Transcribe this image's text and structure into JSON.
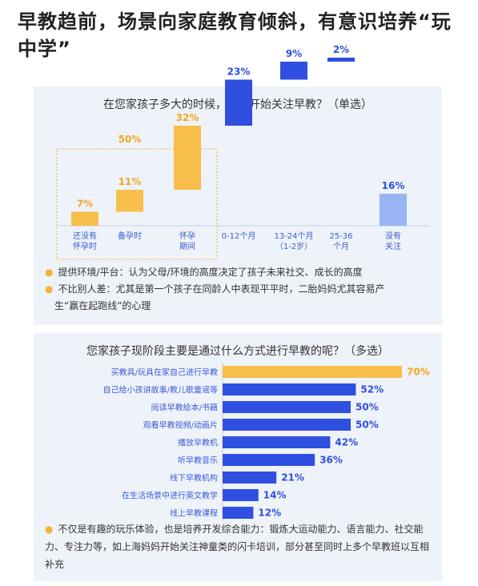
{
  "title": "早教趋前，场景向家庭教育倾斜，有意识培养“玩中学”",
  "colors": {
    "orange": "#f7be4a",
    "blue": "#2f4fe0",
    "orange_text": "#f2a81d",
    "blue_text": "#2f4fe0"
  },
  "panel1": {
    "chart_data": {
      "type": "bar",
      "title": "在您家孩子多大的时候，您就开始关注早教？（单选）",
      "group_label": "50%",
      "categories": [
        "还没有\n怀孕时",
        "备孕时",
        "怀孕\n期间",
        "0-12个月",
        "13-24个月\n（1-2岁）",
        "25-36\n个月",
        "没有\n关注"
      ],
      "values": [
        7,
        11,
        32,
        23,
        9,
        2,
        16
      ],
      "value_labels": [
        "7%",
        "11%",
        "32%",
        "23%",
        "9%",
        "2%",
        "16%"
      ],
      "bar_colors": [
        "orange",
        "orange",
        "orange",
        "blue",
        "blue",
        "blue",
        "lightblue"
      ]
    },
    "bullets": [
      "提供环境/平台：认为父母/环境的高度决定了孩子未来社交、成长的高度",
      "不比别人差：尤其是第一个孩子在同龄人中表现平平时，二胎妈妈尤其容易产",
      "生“赢在起跑线“的心理"
    ]
  },
  "panel2": {
    "chart_data": {
      "type": "bar",
      "orientation": "horizontal",
      "title": "您家孩子现阶段主要是通过什么方式进行早教的呢？（多选）",
      "categories": [
        "买教具/玩具在家自己进行早教",
        "自己给小孩讲故事/教儿歌童谣等",
        "阅读早教绘本/书籍",
        "观看早教视频/动画片",
        "播放早教机",
        "听早教音乐",
        "线下早教机构",
        "在生活场景中进行英文教学",
        "线上早教课程"
      ],
      "values": [
        70,
        52,
        50,
        50,
        42,
        36,
        21,
        14,
        12
      ],
      "value_labels": [
        "70%",
        "52%",
        "50%",
        "50%",
        "42%",
        "36%",
        "21%",
        "14%",
        "12%"
      ]
    },
    "note": "不仅是有趣的玩乐体验，也是培养开发综合能力：锻炼大运动能力、语言能力、社交能力、专注力等，如上海妈妈开始关注神童类的闪卡培训，部分甚至同时上多个早教班以互相补充"
  }
}
